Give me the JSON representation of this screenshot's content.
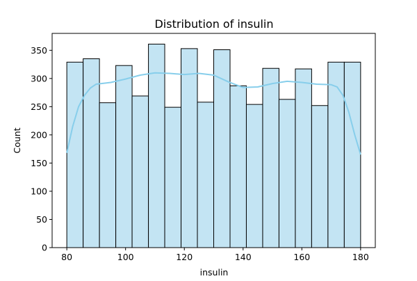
{
  "chart_data": {
    "type": "bar",
    "subtype": "histogram",
    "title": "Distribution of insulin",
    "xlabel": "insulin",
    "ylabel": "Count",
    "xlim": [
      75,
      185
    ],
    "ylim": [
      0,
      380
    ],
    "x_ticks": [
      80,
      100,
      120,
      140,
      160,
      180
    ],
    "y_ticks": [
      0,
      50,
      100,
      150,
      200,
      250,
      300,
      350
    ],
    "bin_edges": [
      80,
      85.56,
      91.11,
      96.67,
      102.22,
      107.78,
      113.33,
      118.89,
      124.44,
      130,
      135.56,
      141.11,
      146.67,
      152.22,
      157.78,
      163.33,
      168.89,
      174.44,
      180
    ],
    "values": [
      329,
      335,
      257,
      323,
      269,
      361,
      249,
      353,
      258,
      351,
      287,
      254,
      318,
      263,
      317,
      252,
      329,
      329
    ],
    "kde": {
      "x": [
        80,
        82,
        84,
        86,
        88,
        90,
        95,
        100,
        105,
        110,
        115,
        120,
        125,
        130,
        135,
        140,
        145,
        150,
        155,
        160,
        165,
        170,
        172,
        174,
        176,
        178,
        180
      ],
      "y": [
        168,
        215,
        250,
        270,
        283,
        290,
        293,
        299,
        306,
        310,
        309,
        307,
        309,
        306,
        294,
        284,
        285,
        291,
        295,
        293,
        290,
        289,
        285,
        270,
        240,
        200,
        165
      ]
    },
    "grid": false,
    "legend": "none",
    "colors": {
      "bar_fill": "#c3e4f3",
      "bar_edge": "#000000",
      "kde_line": "#87ceeb",
      "axis": "#000000"
    }
  }
}
